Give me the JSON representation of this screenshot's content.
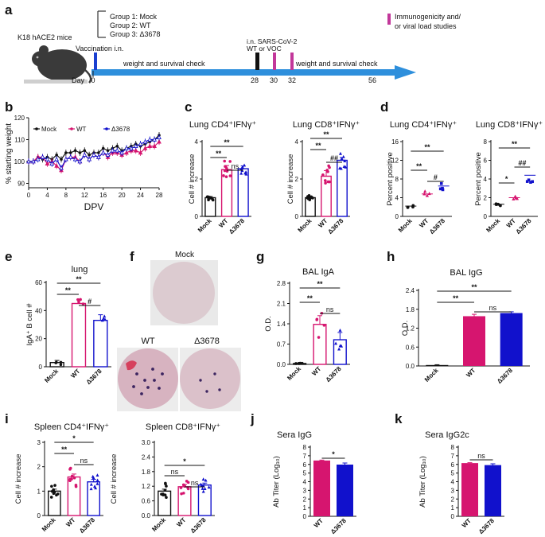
{
  "colors": {
    "mock": "#111111",
    "wt": "#d6156f",
    "d3678": "#1111cc",
    "timeline": "#2e8fdc",
    "pink": "#c2379a",
    "blue_mark": "#1a3fd0"
  },
  "panel_labels": {
    "a": "a",
    "b": "b",
    "c": "c",
    "d": "d",
    "e": "e",
    "f": "f",
    "g": "g",
    "h": "h",
    "i": "i",
    "j": "j",
    "k": "k"
  },
  "timeline": {
    "mice_label": "K18 hACE2 mice",
    "groups": [
      "Group 1: Mock",
      "Group 2: WT",
      "Group 3: Δ3678"
    ],
    "legend_text": [
      "Immunogenicity and/",
      "or viral load  studies"
    ],
    "vaccination": "Vaccination i.n.",
    "infection": [
      "i.n. SARS-CoV-2",
      "WT or VOC"
    ],
    "check1": "weight and survival check",
    "check2": "weight and survival check",
    "day": "Day",
    "days": [
      "0",
      "28",
      "30",
      "32",
      "56"
    ]
  },
  "weight_chart": {
    "ylabel": "% starting weight",
    "xlabel": "DPV",
    "legend": [
      "Mock",
      "WT",
      "Δ3678"
    ],
    "xticks": [
      "0",
      "4",
      "8",
      "12",
      "16",
      "20",
      "24",
      "28"
    ],
    "yticks": [
      "90",
      "100",
      "110",
      "120"
    ]
  },
  "chart_data": [
    {
      "panel": "b",
      "type": "line",
      "x": [
        0,
        1,
        2,
        3,
        4,
        5,
        6,
        7,
        8,
        9,
        10,
        11,
        12,
        13,
        14,
        15,
        16,
        17,
        18,
        19,
        20,
        21,
        22,
        23,
        24,
        25,
        26,
        27,
        28
      ],
      "xlabel": "DPV",
      "ylabel": "% starting weight",
      "xlim": [
        0,
        28
      ],
      "ylim": [
        88,
        120
      ],
      "series": [
        {
          "name": "Mock",
          "values": [
            100,
            100,
            102,
            101,
            102,
            101,
            103,
            101,
            104,
            104,
            105,
            104,
            105,
            103,
            104,
            104,
            106,
            105,
            106,
            107,
            105,
            106,
            107,
            108,
            107,
            108,
            109,
            110,
            112
          ]
        },
        {
          "name": "WT",
          "values": [
            100,
            100,
            102,
            102,
            99,
            100,
            98,
            96,
            101,
            102,
            102,
            100,
            103,
            101,
            103,
            102,
            104,
            102,
            104,
            104,
            103,
            104,
            105,
            105,
            104,
            106,
            107,
            107,
            109
          ]
        },
        {
          "name": "Δ3678",
          "values": [
            100,
            100,
            101,
            102,
            101,
            99,
            101,
            97,
            101,
            102,
            101,
            100,
            103,
            101,
            103,
            102,
            104,
            103,
            105,
            105,
            104,
            106,
            106,
            107,
            108,
            109,
            110,
            110,
            111
          ]
        }
      ]
    },
    {
      "panel": "c",
      "type": "bar",
      "title": "Lung CD4⁺IFNγ⁺",
      "ylabel": "Cell #  increase",
      "categories": [
        "Mock",
        "WT",
        "Δ3678"
      ],
      "values": [
        1.0,
        2.5,
        2.55
      ],
      "ylim": [
        0,
        4
      ],
      "yticks": [
        "0",
        "2",
        "4"
      ],
      "significance": [
        "**",
        "**",
        "ns"
      ]
    },
    {
      "panel": "c",
      "type": "bar",
      "title": "Lung CD8⁺IFNγ⁺",
      "ylabel": "Cell # increase",
      "categories": [
        "Mock",
        "WT",
        "Δ3678"
      ],
      "values": [
        1.0,
        2.15,
        3.0
      ],
      "ylim": [
        0,
        4
      ],
      "yticks": [
        "0",
        "2",
        "4"
      ],
      "significance": [
        "**",
        "**",
        "##"
      ]
    },
    {
      "panel": "d",
      "type": "scatter",
      "title": "Lung CD4⁺IFNγ⁺",
      "ylabel": "Percent positive",
      "categories": [
        "Mock",
        "WT",
        "Δ3678"
      ],
      "values": [
        2.2,
        4.8,
        6.5
      ],
      "ylim": [
        0,
        16
      ],
      "yticks": [
        "0",
        "4",
        "8",
        "12",
        "16"
      ],
      "significance": [
        "**",
        "**",
        "#"
      ]
    },
    {
      "panel": "d",
      "type": "scatter",
      "title": "Lung CD8⁺IFNγ⁺",
      "ylabel": "Percent positive",
      "categories": [
        "Mock",
        "WT",
        "Δ3678"
      ],
      "values": [
        1.3,
        2.0,
        4.4
      ],
      "ylim": [
        0,
        8
      ],
      "yticks": [
        "0",
        "2",
        "4",
        "6",
        "8"
      ],
      "significance": [
        "**",
        "*",
        "##"
      ]
    },
    {
      "panel": "e",
      "type": "bar",
      "title": "lung",
      "ylabel": "IgA⁺ B cell #",
      "categories": [
        "Mock",
        "WT",
        "Δ3678"
      ],
      "values": [
        3,
        45,
        33
      ],
      "ylim": [
        0,
        60
      ],
      "yticks": [
        "0",
        "20",
        "40",
        "60"
      ],
      "significance": [
        "**",
        "**",
        "#"
      ]
    },
    {
      "panel": "g",
      "type": "bar",
      "title": "BAL IgA",
      "ylabel": "O.D.",
      "categories": [
        "Mock",
        "WT",
        "Δ3678"
      ],
      "values": [
        0.03,
        1.38,
        0.85
      ],
      "ylim": [
        0,
        2.8
      ],
      "yticks": [
        "0.0",
        "0.7",
        "1.4",
        "2.1",
        "2.8"
      ],
      "significance": [
        "**",
        "**",
        "ns"
      ]
    },
    {
      "panel": "h",
      "type": "bar",
      "title": "BAL IgG",
      "ylabel": "O.D.",
      "categories": [
        "Mock",
        "WT",
        "Δ3678"
      ],
      "values": [
        0.03,
        1.58,
        1.68
      ],
      "ylim": [
        0,
        2.4
      ],
      "yticks": [
        "0.0",
        "0.6",
        "1.2",
        "1.8",
        "2.4"
      ],
      "significance": [
        "**",
        "**",
        "ns"
      ]
    },
    {
      "panel": "i",
      "type": "bar",
      "title": "Spleen CD4⁺IFNγ⁺",
      "ylabel": "Cell #  increase",
      "categories": [
        "Mock",
        "WT",
        "Δ3678"
      ],
      "values": [
        1.0,
        1.58,
        1.38
      ],
      "ylim": [
        0,
        3
      ],
      "yticks": [
        "0",
        "1",
        "2",
        "3"
      ],
      "significance": [
        "*",
        "**",
        "ns"
      ]
    },
    {
      "panel": "i",
      "type": "bar",
      "title": "Spleen CD8⁺IFNγ⁺",
      "ylabel": "Cell # increase",
      "categories": [
        "Mock",
        "WT",
        "Δ3678"
      ],
      "values": [
        1.0,
        1.18,
        1.25
      ],
      "ylim": [
        0,
        3.0
      ],
      "yticks": [
        "0.0",
        "0.6",
        "1.2",
        "1.8",
        "2.4",
        "3.0"
      ],
      "significance": [
        "*",
        "ns",
        "ns"
      ]
    },
    {
      "panel": "j",
      "type": "bar",
      "title": "Sera IgG",
      "ylabel": "Ab Titer (Log₁₀)",
      "categories": [
        "WT",
        "Δ3678"
      ],
      "values": [
        6.45,
        5.98
      ],
      "ylim": [
        0,
        8
      ],
      "yticks": [
        "0",
        "1",
        "2",
        "3",
        "4",
        "5",
        "6",
        "7",
        "8"
      ],
      "significance": [
        "*"
      ]
    },
    {
      "panel": "k",
      "type": "bar",
      "title": "Sera IgG2c",
      "ylabel": "Ab Titer (Log₁₀)",
      "categories": [
        "WT",
        "Δ3678"
      ],
      "values": [
        6.15,
        5.92
      ],
      "ylim": [
        0,
        8
      ],
      "yticks": [
        "0",
        "1",
        "2",
        "3",
        "4",
        "5",
        "6",
        "7",
        "8"
      ],
      "significance": [
        "ns"
      ]
    }
  ],
  "elispot": {
    "title": "Mock",
    "wt": "WT",
    "d3678": "Δ3678"
  }
}
